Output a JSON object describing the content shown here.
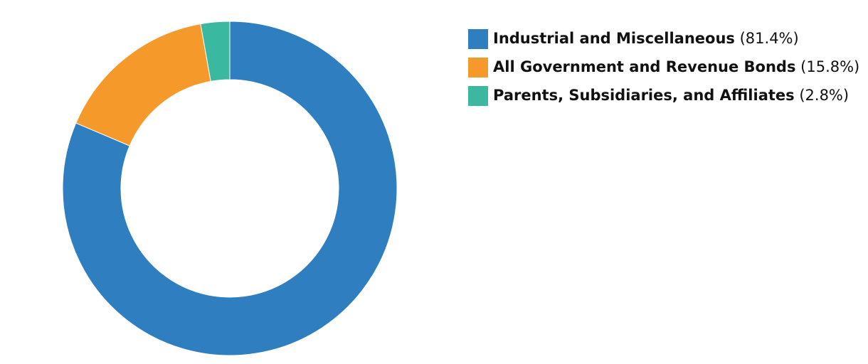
{
  "chart_data": {
    "type": "donut",
    "categories": [
      "Industrial and Miscellaneous",
      "All Government and Revenue Bonds",
      "Parents, Subsidiaries, and Affiliates"
    ],
    "values": [
      81.4,
      15.8,
      2.8
    ],
    "value_labels": [
      "(81.4%)",
      "(15.8%)",
      "(2.8%)"
    ],
    "colors": [
      "#2f7ebf",
      "#f4992a",
      "#3ab8a0"
    ],
    "legend": "right"
  }
}
